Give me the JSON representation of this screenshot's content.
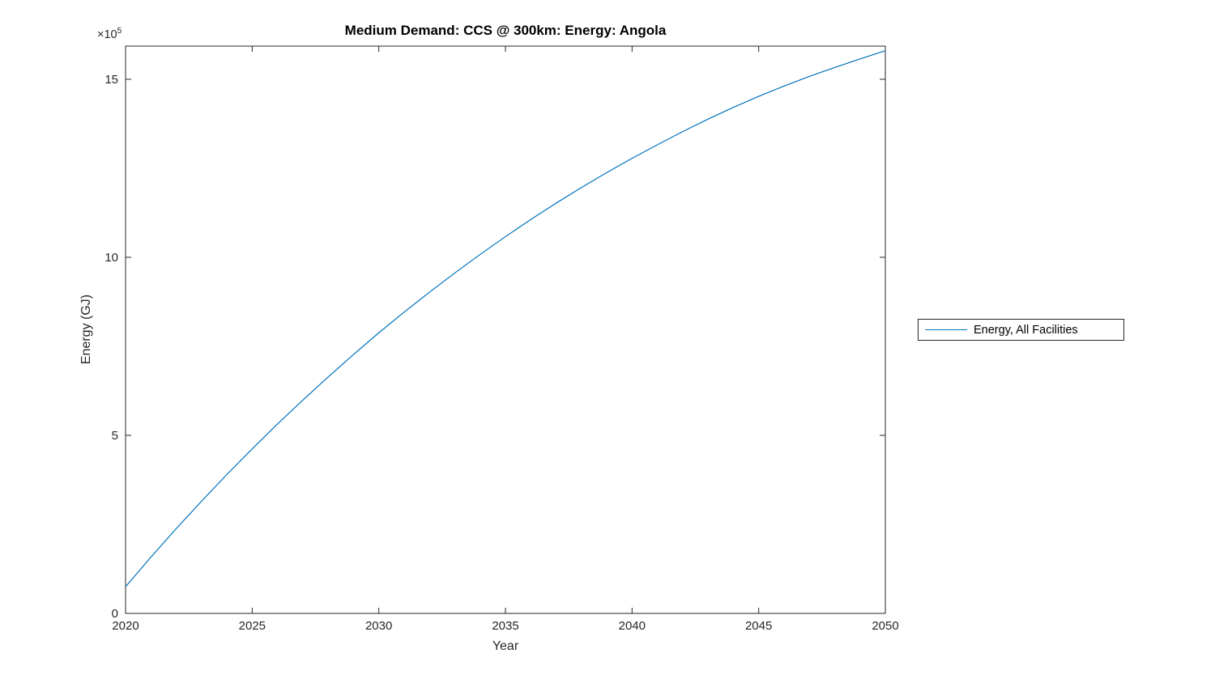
{
  "figure": {
    "background_color": "#ffffff",
    "axis_color": "#262626",
    "line_color": "#0072BD"
  },
  "chart_data": {
    "type": "line",
    "title": "Medium Demand: CCS @ 300km: Energy: Angola",
    "xlabel": "Year",
    "ylabel": "Energy (GJ)",
    "y_offset": {
      "base": "×10",
      "exp": "5"
    },
    "values_unit": "1e5 GJ",
    "xlim": [
      2020,
      2050
    ],
    "ylim": [
      0,
      15.93
    ],
    "xticks": [
      2020,
      2025,
      2030,
      2035,
      2040,
      2045,
      2050
    ],
    "yticks": [
      0,
      5,
      10,
      15
    ],
    "grid": false,
    "x": [
      2020,
      2021,
      2022,
      2023,
      2024,
      2025,
      2026,
      2027,
      2028,
      2029,
      2030,
      2031,
      2032,
      2033,
      2034,
      2035,
      2036,
      2037,
      2038,
      2039,
      2040,
      2041,
      2042,
      2043,
      2044,
      2045,
      2046,
      2047,
      2048,
      2049,
      2050
    ],
    "series": [
      {
        "name": "Energy, All Facilities",
        "color": "#0072BD",
        "values": [
          0.75,
          1.58,
          2.38,
          3.15,
          3.9,
          4.62,
          5.32,
          5.99,
          6.64,
          7.27,
          7.88,
          8.46,
          9.02,
          9.56,
          10.08,
          10.58,
          11.06,
          11.52,
          11.96,
          12.38,
          12.78,
          13.16,
          13.53,
          13.88,
          14.21,
          14.52,
          14.81,
          15.08,
          15.33,
          15.57,
          15.8
        ]
      }
    ],
    "legend": {
      "position": "right-outside",
      "entries": [
        "Energy, All Facilities"
      ]
    }
  },
  "legend": {
    "label": "Energy, All Facilities"
  }
}
